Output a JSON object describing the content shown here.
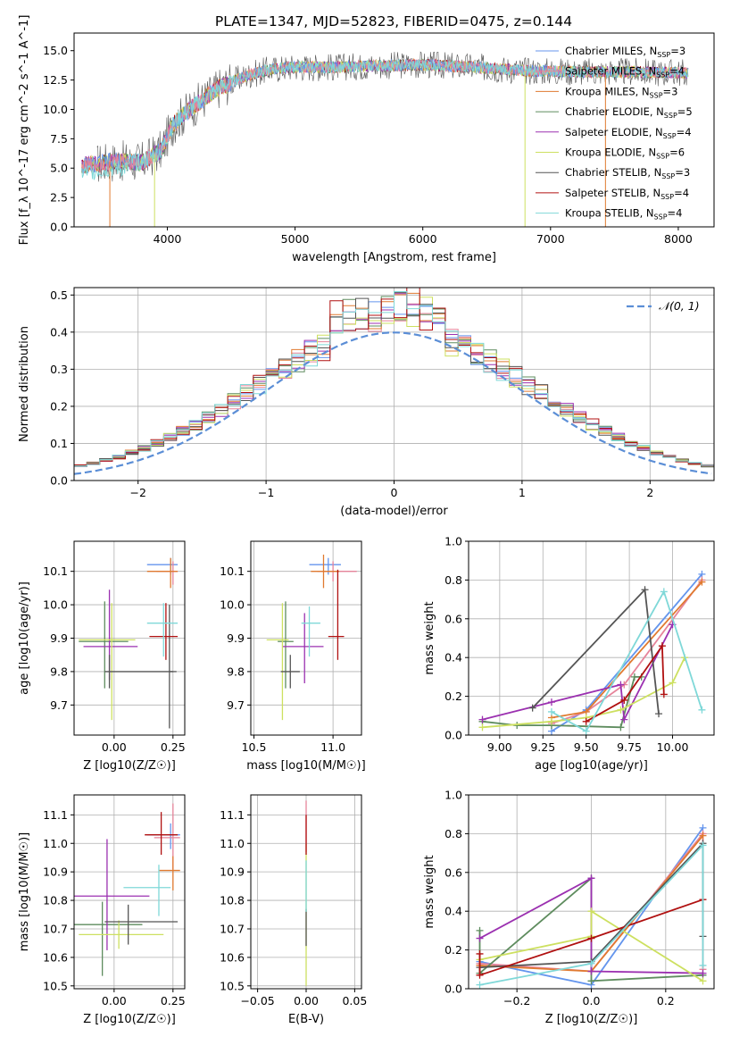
{
  "title": "PLATE=1347, MJD=52823, FIBERID=0475, z=0.144",
  "colors": {
    "chabrier_miles": "#6495ed",
    "salpeter_miles": "#e6849a",
    "kroupa_miles": "#e07a30",
    "chabrier_elodie": "#5e8c5e",
    "salpeter_elodie": "#9b30b0",
    "kroupa_elodie": "#cde060",
    "chabrier_stelib": "#555555",
    "salpeter_stelib": "#b01010",
    "kroupa_stelib": "#7fd8d8",
    "normal": "#5b8ed6",
    "grid": "#b0b0b0"
  },
  "models": [
    {
      "key": "chabrier_miles",
      "label": "Chabrier MILES, N",
      "sub": "SSP",
      "eq": "=3"
    },
    {
      "key": "salpeter_miles",
      "label": "Salpeter MILES, N",
      "sub": "SSP",
      "eq": "=4"
    },
    {
      "key": "kroupa_miles",
      "label": "Kroupa MILES, N",
      "sub": "SSP",
      "eq": "=3"
    },
    {
      "key": "chabrier_elodie",
      "label": "Chabrier ELODIE, N",
      "sub": "SSP",
      "eq": "=5"
    },
    {
      "key": "salpeter_elodie",
      "label": "Salpeter ELODIE, N",
      "sub": "SSP",
      "eq": "=4"
    },
    {
      "key": "kroupa_elodie",
      "label": "Kroupa ELODIE, N",
      "sub": "SSP",
      "eq": "=6"
    },
    {
      "key": "chabrier_stelib",
      "label": "Chabrier STELIB, N",
      "sub": "SSP",
      "eq": "=3"
    },
    {
      "key": "salpeter_stelib",
      "label": "Salpeter STELIB, N",
      "sub": "SSP",
      "eq": "=4"
    },
    {
      "key": "kroupa_stelib",
      "label": "Kroupa STELIB, N",
      "sub": "SSP",
      "eq": "=4"
    }
  ],
  "chart_data": [
    {
      "id": "spectrum",
      "type": "line",
      "xlabel": "wavelength [Angstrom, rest frame]",
      "ylabel": "Flux [f_λ 10^-17 erg cm^-2 s^-1 A^-1]",
      "xlim": [
        3270,
        8280
      ],
      "ylim": [
        0,
        16.5
      ],
      "xticks": [
        4000,
        5000,
        6000,
        7000,
        8000
      ],
      "yticks": [
        0.0,
        2.5,
        5.0,
        7.5,
        10.0,
        12.5,
        15.0
      ],
      "x_range": [
        3330,
        8080
      ],
      "continuum": [
        [
          3330,
          5.2
        ],
        [
          3600,
          5.6
        ],
        [
          3800,
          5.5
        ],
        [
          3950,
          6.5
        ],
        [
          4050,
          8.8
        ],
        [
          4200,
          10.2
        ],
        [
          4400,
          11.8
        ],
        [
          4600,
          12.8
        ],
        [
          4800,
          13.4
        ],
        [
          5000,
          13.6
        ],
        [
          5300,
          13.6
        ],
        [
          5600,
          13.7
        ],
        [
          6000,
          13.8
        ],
        [
          6400,
          13.6
        ],
        [
          6800,
          13.3
        ],
        [
          7200,
          13.2
        ],
        [
          7600,
          13.2
        ],
        [
          8080,
          13.1
        ]
      ],
      "dips": [
        [
          3550,
          0
        ],
        [
          3900,
          0
        ],
        [
          6800,
          0
        ],
        [
          7430,
          0
        ]
      ]
    },
    {
      "id": "residuals",
      "type": "step",
      "xlabel": "(data-model)/error",
      "ylabel": "Normed distribution",
      "xlim": [
        -2.5,
        2.5
      ],
      "ylim": [
        0,
        0.52
      ],
      "xticks": [
        -2,
        -1,
        0,
        1,
        2
      ],
      "xtick_labels": [
        "−2",
        "−1",
        "0",
        "1",
        "2"
      ],
      "yticks": [
        0.0,
        0.1,
        0.2,
        0.3,
        0.4,
        0.5
      ],
      "bin_width": 0.1,
      "legend": "𝒩(0, 1)",
      "normal": {
        "mu": 0,
        "sigma": 1
      }
    },
    {
      "id": "age_vs_Z",
      "type": "errorbar",
      "xlabel": "Z [log10(Z/Z☉)]",
      "ylabel": "age [log10(age/yr)]",
      "xlim": [
        -0.17,
        0.3
      ],
      "ylim": [
        9.61,
        10.19
      ],
      "xticks": [
        0.0,
        0.25
      ],
      "xtick_labels": [
        "0.00",
        "0.25"
      ],
      "yticks": [
        9.7,
        9.8,
        9.9,
        10.0,
        10.1
      ],
      "points": [
        {
          "key": "chabrier_miles",
          "x": 0.24,
          "y": 10.12,
          "xerr": [
            0.1,
            0.03
          ],
          "yerr": [
            0.03,
            0.02
          ]
        },
        {
          "key": "salpeter_miles",
          "x": 0.25,
          "y": 10.1,
          "xerr": [
            0.07,
            0.02
          ],
          "yerr": [
            0.04,
            0.03
          ]
        },
        {
          "key": "kroupa_miles",
          "x": 0.24,
          "y": 10.1,
          "xerr": [
            0.1,
            0.03
          ],
          "yerr": [
            0.05,
            0.04
          ]
        },
        {
          "key": "chabrier_elodie",
          "x": -0.04,
          "y": 9.89,
          "xerr": [
            0.11,
            0.1
          ],
          "yerr": [
            0.14,
            0.12
          ]
        },
        {
          "key": "salpeter_elodie",
          "x": -0.02,
          "y": 9.875,
          "xerr": [
            0.11,
            0.12
          ],
          "yerr": [
            0.1,
            0.17
          ]
        },
        {
          "key": "kroupa_elodie",
          "x": -0.01,
          "y": 9.895,
          "xerr": [
            0.14,
            0.1
          ],
          "yerr": [
            0.24,
            0.11
          ]
        },
        {
          "key": "chabrier_stelib",
          "x": -0.02,
          "y": 9.8,
          "xerr": [
            0.02,
            0.27
          ],
          "yerr": [
            0.05,
            0.05
          ]
        },
        {
          "key": "chabrier_stelib_b",
          "color_key": "chabrier_stelib",
          "x": 0.235,
          "y": 9.8,
          "xerr": [
            0.0,
            0.03
          ],
          "yerr": [
            0.17,
            0.2
          ]
        },
        {
          "key": "salpeter_stelib",
          "x": 0.22,
          "y": 9.905,
          "xerr": [
            0.07,
            0.05
          ],
          "yerr": [
            0.07,
            0.1
          ]
        },
        {
          "key": "kroupa_stelib",
          "x": 0.21,
          "y": 9.945,
          "xerr": [
            0.07,
            0.06
          ],
          "yerr": [
            0.1,
            0.06
          ]
        }
      ]
    },
    {
      "id": "age_vs_mass",
      "type": "errorbar",
      "xlabel": "mass [log10(M/M☉)]",
      "ylabel": "",
      "xlim": [
        10.48,
        11.18
      ],
      "ylim": [
        9.61,
        10.19
      ],
      "xticks": [
        10.5,
        11.0
      ],
      "xtick_labels": [
        "10.5",
        "11.0"
      ],
      "yticks": [
        9.7,
        9.8,
        9.9,
        10.0,
        10.1
      ],
      "points": [
        {
          "key": "chabrier_miles",
          "x": 10.97,
          "y": 10.12,
          "xerr": [
            0.12,
            0.08
          ],
          "yerr": [
            0.03,
            0.02
          ]
        },
        {
          "key": "salpeter_miles",
          "x": 11.0,
          "y": 10.1,
          "xerr": [
            0.1,
            0.15
          ],
          "yerr": [
            0.03,
            0.03
          ]
        },
        {
          "key": "kroupa_miles",
          "x": 10.94,
          "y": 10.1,
          "xerr": [
            0.08,
            0.1
          ],
          "yerr": [
            0.05,
            0.05
          ]
        },
        {
          "key": "chabrier_elodie",
          "x": 10.7,
          "y": 9.89,
          "xerr": [
            0.05,
            0.05
          ],
          "yerr": [
            0.14,
            0.12
          ]
        },
        {
          "key": "salpeter_elodie",
          "x": 10.82,
          "y": 9.875,
          "xerr": [
            0.14,
            0.12
          ],
          "yerr": [
            0.11,
            0.1
          ]
        },
        {
          "key": "kroupa_elodie",
          "x": 10.68,
          "y": 9.895,
          "xerr": [
            0.1,
            0.04
          ],
          "yerr": [
            0.24,
            0.11
          ]
        },
        {
          "key": "chabrier_stelib",
          "x": 10.73,
          "y": 9.8,
          "xerr": [
            0.06,
            0.06
          ],
          "yerr": [
            0.05,
            0.05
          ]
        },
        {
          "key": "salpeter_stelib",
          "x": 11.03,
          "y": 9.905,
          "xerr": [
            0.06,
            0.04
          ],
          "yerr": [
            0.07,
            0.2
          ]
        },
        {
          "key": "kroupa_stelib",
          "x": 10.85,
          "y": 9.945,
          "xerr": [
            0.05,
            0.07
          ],
          "yerr": [
            0.1,
            0.05
          ]
        }
      ]
    },
    {
      "id": "weights_vs_age",
      "type": "line",
      "xlabel": "age [log10(age/yr)]",
      "ylabel": "mass weight",
      "xlim": [
        8.82,
        10.24
      ],
      "ylim": [
        0,
        1.0
      ],
      "xticks": [
        9.0,
        9.25,
        9.5,
        9.75,
        10.0
      ],
      "xtick_labels": [
        "9.00",
        "9.25",
        "9.50",
        "9.75",
        "10.00"
      ],
      "yticks": [
        0.0,
        0.2,
        0.4,
        0.6,
        0.8,
        1.0
      ],
      "series": [
        {
          "key": "chabrier_miles",
          "x": [
            9.3,
            9.5,
            10.17
          ],
          "y": [
            0.02,
            0.13,
            0.83
          ]
        },
        {
          "key": "salpeter_miles",
          "x": [
            9.3,
            9.5,
            9.72,
            10.17
          ],
          "y": [
            0.06,
            0.12,
            0.26,
            0.8
          ]
        },
        {
          "key": "kroupa_miles",
          "x": [
            9.3,
            9.5,
            10.17
          ],
          "y": [
            0.09,
            0.12,
            0.79
          ]
        },
        {
          "key": "chabrier_elodie",
          "x": [
            8.9,
            9.1,
            9.3,
            9.7,
            9.78,
            9.82
          ],
          "y": [
            0.07,
            0.05,
            0.05,
            0.04,
            0.3,
            0.3
          ]
        },
        {
          "key": "salpeter_elodie",
          "x": [
            8.9,
            9.3,
            9.7,
            9.72,
            10.0
          ],
          "y": [
            0.08,
            0.17,
            0.26,
            0.08,
            0.57
          ]
        },
        {
          "key": "kroupa_elodie",
          "x": [
            8.9,
            9.3,
            9.5,
            9.7,
            10.0,
            10.07
          ],
          "y": [
            0.04,
            0.07,
            0.09,
            0.13,
            0.27,
            0.4
          ]
        },
        {
          "key": "chabrier_stelib",
          "x": [
            9.19,
            9.84,
            9.92
          ],
          "y": [
            0.14,
            0.75,
            0.11
          ]
        },
        {
          "key": "salpeter_stelib",
          "x": [
            9.5,
            9.72,
            9.94,
            9.95
          ],
          "y": [
            0.07,
            0.18,
            0.46,
            0.21
          ]
        },
        {
          "key": "kroupa_stelib",
          "x": [
            9.3,
            9.5,
            9.95,
            10.17
          ],
          "y": [
            0.12,
            0.02,
            0.74,
            0.13
          ]
        }
      ]
    },
    {
      "id": "mass_vs_Z",
      "type": "errorbar",
      "xlabel": "Z [log10(Z/Z☉)]",
      "ylabel": "mass [log10(M/M☉)]",
      "xlim": [
        -0.17,
        0.3
      ],
      "ylim": [
        10.49,
        11.17
      ],
      "xticks": [
        0.0,
        0.25
      ],
      "xtick_labels": [
        "0.00",
        "0.25"
      ],
      "yticks": [
        10.5,
        10.6,
        10.7,
        10.8,
        10.9,
        11.0,
        11.1
      ],
      "points": [
        {
          "key": "chabrier_miles",
          "x": 0.24,
          "y": 11.03,
          "xerr": [
            0.1,
            0.04
          ],
          "yerr": [
            0.05,
            0.04
          ]
        },
        {
          "key": "salpeter_miles",
          "x": 0.25,
          "y": 11.02,
          "xerr": [
            0.08,
            0.03
          ],
          "yerr": [
            0.11,
            0.12
          ]
        },
        {
          "key": "kroupa_miles",
          "x": 0.25,
          "y": 10.905,
          "xerr": [
            0.06,
            0.03
          ],
          "yerr": [
            0.07,
            0.05
          ]
        },
        {
          "key": "chabrier_elodie",
          "x": -0.05,
          "y": 10.715,
          "xerr": [
            0.12,
            0.17
          ],
          "yerr": [
            0.18,
            0.08
          ]
        },
        {
          "key": "salpeter_elodie",
          "x": -0.03,
          "y": 10.815,
          "xerr": [
            0.14,
            0.18
          ],
          "yerr": [
            0.19,
            0.2
          ]
        },
        {
          "key": "kroupa_elodie",
          "x": 0.02,
          "y": 10.68,
          "xerr": [
            0.17,
            0.19
          ],
          "yerr": [
            0.05,
            0.05
          ]
        },
        {
          "key": "chabrier_stelib",
          "x": 0.06,
          "y": 10.725,
          "xerr": [
            0.1,
            0.21
          ],
          "yerr": [
            0.08,
            0.06
          ]
        },
        {
          "key": "salpeter_stelib",
          "x": 0.2,
          "y": 11.03,
          "xerr": [
            0.07,
            0.07
          ],
          "yerr": [
            0.07,
            0.08
          ]
        },
        {
          "key": "kroupa_stelib",
          "x": 0.19,
          "y": 10.845,
          "xerr": [
            0.15,
            0.05
          ],
          "yerr": [
            0.1,
            0.08
          ]
        }
      ]
    },
    {
      "id": "mass_vs_ebv",
      "type": "errorbar",
      "xlabel": "E(B-V)",
      "ylabel": "",
      "xlim": [
        -0.057,
        0.057
      ],
      "ylim": [
        10.49,
        11.17
      ],
      "xticks": [
        -0.05,
        0.0,
        0.05
      ],
      "xtick_labels": [
        "−0.05",
        "0.00",
        "0.05"
      ],
      "yticks": [
        10.5,
        10.6,
        10.7,
        10.8,
        10.9,
        11.0,
        11.1
      ],
      "points": [
        {
          "key": "kroupa_elodie",
          "x": 0,
          "y": 10.7,
          "xerr": [
            0,
            0
          ],
          "yerr": [
            0.2,
            0.3
          ]
        },
        {
          "key": "chabrier_stelib",
          "x": 0,
          "y": 10.72,
          "xerr": [
            0,
            0
          ],
          "yerr": [
            0.08,
            0.05
          ]
        },
        {
          "key": "kroupa_stelib",
          "x": 0,
          "y": 10.86,
          "xerr": [
            0,
            0
          ],
          "yerr": [
            0.1,
            0.08
          ]
        },
        {
          "key": "salpeter_miles",
          "x": 0,
          "y": 11.05,
          "xerr": [
            0,
            0
          ],
          "yerr": [
            0.08,
            0.1
          ]
        },
        {
          "key": "salpeter_stelib",
          "x": 0,
          "y": 11.02,
          "xerr": [
            0,
            0
          ],
          "yerr": [
            0.06,
            0.08
          ]
        }
      ]
    },
    {
      "id": "weights_vs_Z",
      "type": "line",
      "xlabel": "Z [log10(Z/Z☉)]",
      "ylabel": "mass weight",
      "xlim": [
        -0.33,
        0.33
      ],
      "ylim": [
        0,
        1.0
      ],
      "xticks": [
        -0.2,
        0.0,
        0.2
      ],
      "xtick_labels": [
        "−0.2",
        "0.0",
        "0.2"
      ],
      "yticks": [
        0.0,
        0.2,
        0.4,
        0.6,
        0.8,
        1.0
      ],
      "series": [
        {
          "key": "chabrier_miles",
          "x": [
            -0.3,
            0.0,
            0.3
          ],
          "y": [
            0.14,
            0.02,
            0.83
          ]
        },
        {
          "key": "salpeter_miles",
          "x": [
            -0.3,
            0.0,
            0.3,
            0.3
          ],
          "y": [
            0.13,
            0.09,
            0.8,
            0.1
          ]
        },
        {
          "key": "kroupa_miles",
          "x": [
            -0.3,
            0.0,
            0.3
          ],
          "y": [
            0.12,
            0.09,
            0.79
          ]
        },
        {
          "key": "chabrier_elodie",
          "x": [
            -0.3,
            -0.3,
            0.0,
            0.0,
            0.3
          ],
          "y": [
            0.3,
            0.08,
            0.57,
            0.04,
            0.07
          ]
        },
        {
          "key": "salpeter_elodie",
          "x": [
            -0.3,
            0.0,
            0.0,
            0.3
          ],
          "y": [
            0.26,
            0.57,
            0.09,
            0.08
          ]
        },
        {
          "key": "kroupa_elodie",
          "x": [
            -0.3,
            0.0,
            0.0,
            0.3
          ],
          "y": [
            0.15,
            0.27,
            0.4,
            0.04
          ]
        },
        {
          "key": "chabrier_stelib",
          "x": [
            -0.3,
            0.0,
            0.3,
            0.3
          ],
          "y": [
            0.11,
            0.14,
            0.75,
            0.27
          ]
        },
        {
          "key": "salpeter_stelib",
          "x": [
            -0.3,
            -0.3,
            0.0,
            0.3
          ],
          "y": [
            0.18,
            0.07,
            0.26,
            0.46
          ]
        },
        {
          "key": "kroupa_stelib",
          "x": [
            -0.3,
            0.0,
            0.3,
            0.3
          ],
          "y": [
            0.02,
            0.13,
            0.74,
            0.12
          ]
        }
      ]
    }
  ]
}
